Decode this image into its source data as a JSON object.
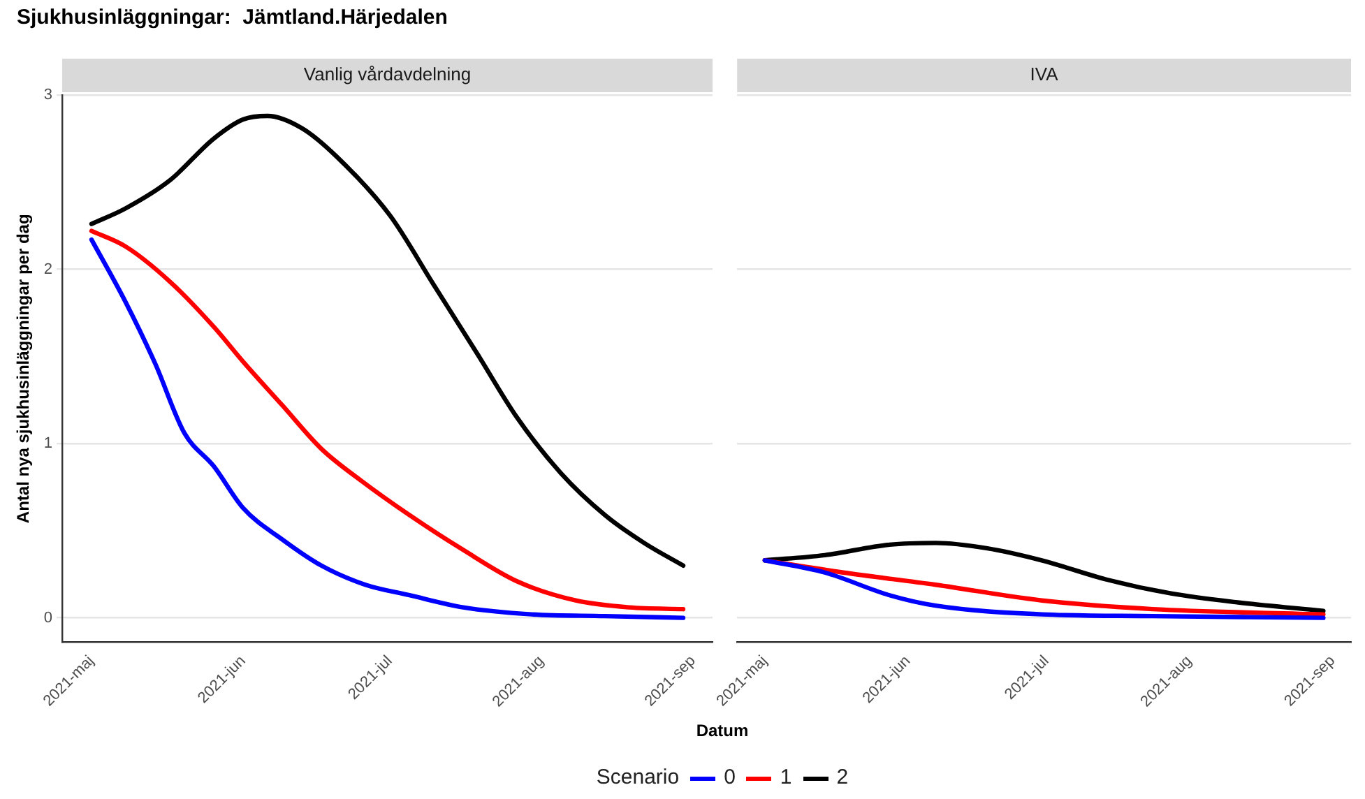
{
  "chart_data": [
    {
      "type": "line",
      "title": "Sjukhusinläggningar:  Jämtland.Härjedalen",
      "subtitle": "Vanlig vårdavdelning",
      "xlabel": "Datum",
      "ylabel": "Antal nya sjukhusinläggningar per dag",
      "legend_title": "Scenario",
      "legend": "bottom",
      "grid": "y",
      "marker": "none",
      "line_style": "solid",
      "xlim": [
        "2021-04-25",
        "2021-09-05"
      ],
      "ylim": [
        -0.14,
        3
      ],
      "yticks": [
        0,
        1,
        2,
        3
      ],
      "xticks": [
        {
          "value": "2021-05-01",
          "label": "2021-maj"
        },
        {
          "value": "2021-06-01",
          "label": "2021-jun"
        },
        {
          "value": "2021-07-01",
          "label": "2021-jul"
        },
        {
          "value": "2021-08-01",
          "label": "2021-aug"
        },
        {
          "value": "2021-09-01",
          "label": "2021-sep"
        }
      ],
      "series": [
        {
          "name": "0",
          "color": "#0000ff",
          "x": [
            "2021-05-01",
            "2021-05-08",
            "2021-05-14",
            "2021-05-20",
            "2021-05-26",
            "2021-06-01",
            "2021-06-09",
            "2021-06-17",
            "2021-06-26",
            "2021-07-05",
            "2021-07-16",
            "2021-07-30",
            "2021-08-14",
            "2021-08-30"
          ],
          "values": [
            2.17,
            1.81,
            1.46,
            1.06,
            0.87,
            0.63,
            0.45,
            0.3,
            0.19,
            0.13,
            0.06,
            0.02,
            0.01,
            0.0
          ]
        },
        {
          "name": "1",
          "color": "#ff0000",
          "x": [
            "2021-05-01",
            "2021-05-08",
            "2021-05-17",
            "2021-05-26",
            "2021-06-01",
            "2021-06-09",
            "2021-06-17",
            "2021-06-25",
            "2021-07-05",
            "2021-07-16",
            "2021-07-27",
            "2021-08-08",
            "2021-08-19",
            "2021-08-30"
          ],
          "values": [
            2.22,
            2.13,
            1.93,
            1.67,
            1.47,
            1.22,
            0.97,
            0.79,
            0.59,
            0.39,
            0.21,
            0.1,
            0.06,
            0.05
          ]
        },
        {
          "name": "2",
          "color": "#000000",
          "x": [
            "2021-05-01",
            "2021-05-08",
            "2021-05-17",
            "2021-05-26",
            "2021-06-01",
            "2021-06-06",
            "2021-06-13",
            "2021-06-20",
            "2021-07-01",
            "2021-07-10",
            "2021-07-19",
            "2021-07-27",
            "2021-08-05",
            "2021-08-14",
            "2021-08-22",
            "2021-08-30"
          ],
          "values": [
            2.26,
            2.35,
            2.51,
            2.75,
            2.86,
            2.88,
            2.81,
            2.65,
            2.31,
            1.91,
            1.51,
            1.15,
            0.83,
            0.59,
            0.43,
            0.3
          ]
        }
      ]
    },
    {
      "type": "line",
      "subtitle": "IVA",
      "legend": false,
      "grid": "y",
      "marker": "none",
      "line_style": "solid",
      "tick_labels": "x",
      "xlim": [
        "2021-04-25",
        "2021-09-05"
      ],
      "ylim": [
        -0.14,
        3
      ],
      "yticks": [
        0,
        1,
        2,
        3
      ],
      "xticks": [
        {
          "value": "2021-05-01",
          "label": "2021-maj"
        },
        {
          "value": "2021-06-01",
          "label": "2021-jun"
        },
        {
          "value": "2021-07-01",
          "label": "2021-jul"
        },
        {
          "value": "2021-08-01",
          "label": "2021-aug"
        },
        {
          "value": "2021-09-01",
          "label": "2021-sep"
        }
      ],
      "series": [
        {
          "name": "0",
          "color": "#0000ff",
          "x": [
            "2021-05-01",
            "2021-05-14",
            "2021-05-28",
            "2021-06-07",
            "2021-06-30",
            "2021-07-24",
            "2021-08-30"
          ],
          "values": [
            0.33,
            0.26,
            0.13,
            0.07,
            0.02,
            0.01,
            0.0
          ]
        },
        {
          "name": "1",
          "color": "#ff0000",
          "x": [
            "2021-05-01",
            "2021-05-18",
            "2021-06-07",
            "2021-06-30",
            "2021-07-24",
            "2021-08-30"
          ],
          "values": [
            0.33,
            0.26,
            0.19,
            0.1,
            0.05,
            0.02
          ]
        },
        {
          "name": "2",
          "color": "#000000",
          "x": [
            "2021-05-01",
            "2021-05-14",
            "2021-05-28",
            "2021-06-07",
            "2021-06-18",
            "2021-06-30",
            "2021-07-14",
            "2021-07-28",
            "2021-08-11",
            "2021-08-30"
          ],
          "values": [
            0.33,
            0.36,
            0.42,
            0.43,
            0.4,
            0.33,
            0.22,
            0.14,
            0.09,
            0.04
          ]
        }
      ]
    }
  ]
}
